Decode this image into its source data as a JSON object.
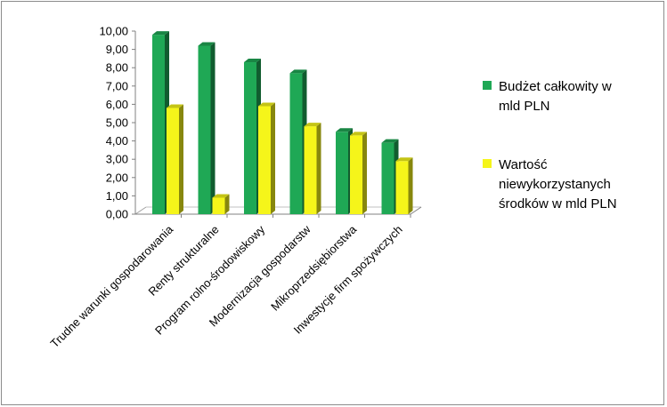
{
  "chart_data": {
    "type": "bar",
    "categories": [
      "Trudne warunki gospodarowania",
      "Renty strukturalne",
      "Program rolno-środowiskowy",
      "Modernizacja gospodarstw",
      "Mikroprzedsiębiorstwa",
      "Inwestycje firm spożywczych"
    ],
    "series": [
      {
        "name": "Budżet całkowity w mld PLN",
        "legend_lines": [
          "Budżet całkowity w",
          "mld PLN"
        ],
        "color": "#1fa855",
        "values": [
          9.8,
          9.2,
          8.3,
          7.7,
          4.5,
          3.9
        ]
      },
      {
        "name": "Wartość niewykorzystanych środków w mld PLN",
        "legend_lines": [
          "Wartość",
          "niewykorzystanych",
          "środków w mld PLN"
        ],
        "color": "#f5f51a",
        "values": [
          5.8,
          0.9,
          5.9,
          4.8,
          4.3,
          2.9
        ]
      }
    ],
    "y_ticks": [
      "0,00",
      "1,00",
      "2,00",
      "3,00",
      "4,00",
      "5,00",
      "6,00",
      "7,00",
      "8,00",
      "9,00",
      "10,00"
    ],
    "ylim": [
      0,
      10
    ],
    "grid": false,
    "legend_position": "right",
    "title": "",
    "xlabel": "",
    "ylabel": ""
  }
}
